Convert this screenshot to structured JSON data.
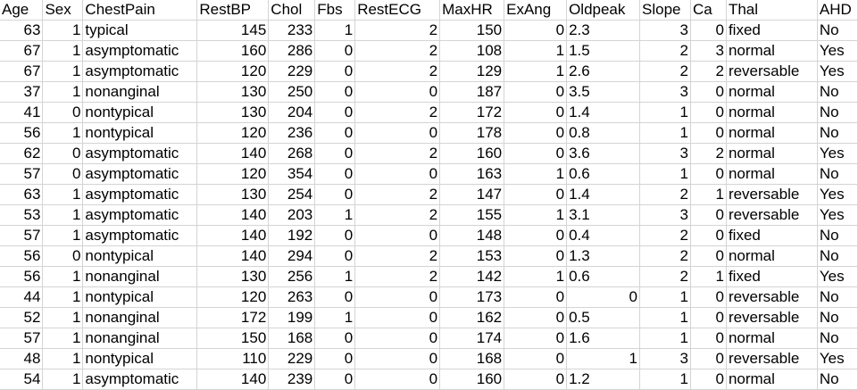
{
  "sheet": {
    "columns": [
      "Age",
      "Sex",
      "ChestPain",
      "RestBP",
      "Chol",
      "Fbs",
      "RestECG",
      "MaxHR",
      "ExAng",
      "Oldpeak",
      "Slope",
      "Ca",
      "Thal",
      "AHD"
    ],
    "rows": [
      [
        "63",
        "1",
        "typical",
        "145",
        "233",
        "1",
        "2",
        "150",
        "0",
        "2.3",
        "3",
        "0",
        "fixed",
        "No"
      ],
      [
        "67",
        "1",
        "asymptomatic",
        "160",
        "286",
        "0",
        "2",
        "108",
        "1",
        "1.5",
        "2",
        "3",
        "normal",
        "Yes"
      ],
      [
        "67",
        "1",
        "asymptomatic",
        "120",
        "229",
        "0",
        "2",
        "129",
        "1",
        "2.6",
        "2",
        "2",
        "reversable",
        "Yes"
      ],
      [
        "37",
        "1",
        "nonanginal",
        "130",
        "250",
        "0",
        "0",
        "187",
        "0",
        "3.5",
        "3",
        "0",
        "normal",
        "No"
      ],
      [
        "41",
        "0",
        "nontypical",
        "130",
        "204",
        "0",
        "2",
        "172",
        "0",
        "1.4",
        "1",
        "0",
        "normal",
        "No"
      ],
      [
        "56",
        "1",
        "nontypical",
        "120",
        "236",
        "0",
        "0",
        "178",
        "0",
        "0.8",
        "1",
        "0",
        "normal",
        "No"
      ],
      [
        "62",
        "0",
        "asymptomatic",
        "140",
        "268",
        "0",
        "2",
        "160",
        "0",
        "3.6",
        "3",
        "2",
        "normal",
        "Yes"
      ],
      [
        "57",
        "0",
        "asymptomatic",
        "120",
        "354",
        "0",
        "0",
        "163",
        "1",
        "0.6",
        "1",
        "0",
        "normal",
        "No"
      ],
      [
        "63",
        "1",
        "asymptomatic",
        "130",
        "254",
        "0",
        "2",
        "147",
        "0",
        "1.4",
        "2",
        "1",
        "reversable",
        "Yes"
      ],
      [
        "53",
        "1",
        "asymptomatic",
        "140",
        "203",
        "1",
        "2",
        "155",
        "1",
        "3.1",
        "3",
        "0",
        "reversable",
        "Yes"
      ],
      [
        "57",
        "1",
        "asymptomatic",
        "140",
        "192",
        "0",
        "0",
        "148",
        "0",
        "0.4",
        "2",
        "0",
        "fixed",
        "No"
      ],
      [
        "56",
        "0",
        "nontypical",
        "140",
        "294",
        "0",
        "2",
        "153",
        "0",
        "1.3",
        "2",
        "0",
        "normal",
        "No"
      ],
      [
        "56",
        "1",
        "nonanginal",
        "130",
        "256",
        "1",
        "2",
        "142",
        "1",
        "0.6",
        "2",
        "1",
        "fixed",
        "Yes"
      ],
      [
        "44",
        "1",
        "nontypical",
        "120",
        "263",
        "0",
        "0",
        "173",
        "0",
        "0",
        "1",
        "0",
        "reversable",
        "No"
      ],
      [
        "52",
        "1",
        "nonanginal",
        "172",
        "199",
        "1",
        "0",
        "162",
        "0",
        "0.5",
        "1",
        "0",
        "reversable",
        "No"
      ],
      [
        "57",
        "1",
        "nonanginal",
        "150",
        "168",
        "0",
        "0",
        "174",
        "0",
        "1.6",
        "1",
        "0",
        "normal",
        "No"
      ],
      [
        "48",
        "1",
        "nontypical",
        "110",
        "229",
        "0",
        "0",
        "168",
        "0",
        "1",
        "3",
        "0",
        "reversable",
        "Yes"
      ],
      [
        "54",
        "1",
        "asymptomatic",
        "140",
        "239",
        "0",
        "0",
        "160",
        "0",
        "1.2",
        "1",
        "0",
        "normal",
        "No"
      ]
    ]
  }
}
